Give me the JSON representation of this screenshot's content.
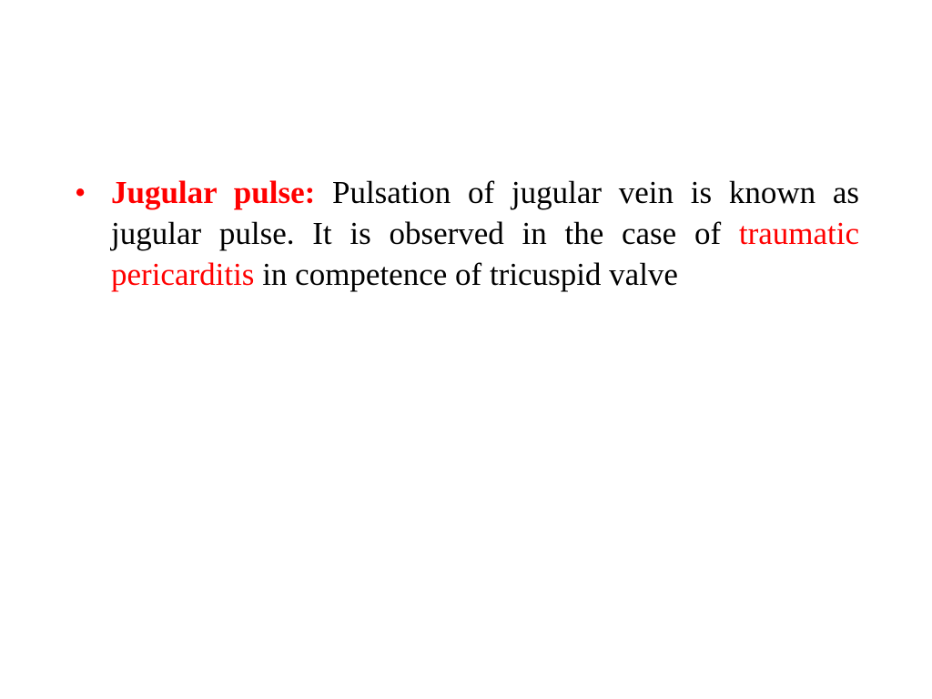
{
  "slide": {
    "background_color": "#ffffff",
    "font_family": "Times New Roman",
    "body_font_size": 35,
    "body_color": "#000000",
    "accent_color": "#ff0000",
    "bullet": {
      "marker": "•",
      "term": "Jugular pulse:",
      "segment1": " Pulsation of jugular vein is known as jugular pulse. It is observed in the case of ",
      "highlight": "traumatic pericarditis",
      "segment2": " in competence of tricuspid valve"
    }
  }
}
